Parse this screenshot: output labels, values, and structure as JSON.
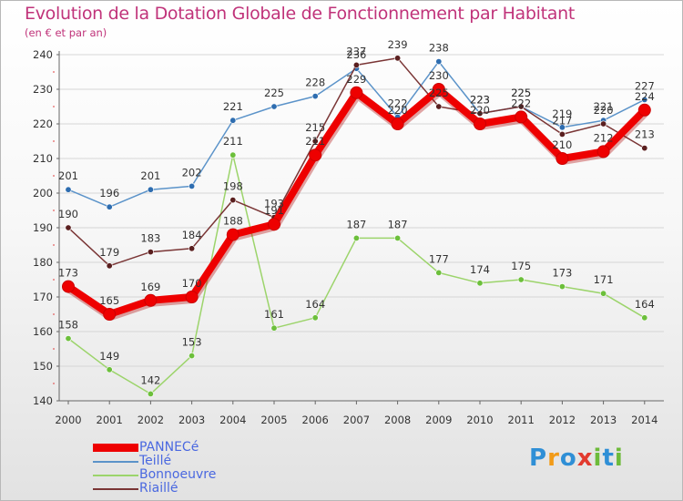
{
  "title": "Evolution de la Dotation Globale de Fonctionnement par Habitant",
  "subtitle": "(en € et par an)",
  "logo": {
    "letters": [
      "P",
      "r",
      "o",
      "x",
      "i",
      "t",
      "i"
    ],
    "colors": [
      "#2f8fd6",
      "#f29b18",
      "#2f8fd6",
      "#e23a2e",
      "#6dbb3a",
      "#2f8fd6",
      "#6dbb3a"
    ]
  },
  "chart_data": {
    "type": "line",
    "title": "Evolution de la Dotation Globale de Fonctionnement par Habitant",
    "subtitle": "(en € et par an)",
    "xlabel": "",
    "ylabel": "",
    "ylim": [
      140,
      240
    ],
    "yticks": [
      140,
      150,
      160,
      170,
      180,
      190,
      200,
      210,
      220,
      230,
      240
    ],
    "categories": [
      "2000",
      "2001",
      "2002",
      "2003",
      "2004",
      "2005",
      "2006",
      "2007",
      "2008",
      "2009",
      "2010",
      "2011",
      "2012",
      "2013",
      "2014"
    ],
    "legend_position": "bottom-left",
    "series": [
      {
        "name": "Teillé",
        "color": "#5b93c9",
        "point_color": "#2e6db0",
        "values": [
          201,
          196,
          201,
          202,
          221,
          225,
          228,
          236,
          222,
          238,
          223,
          225,
          219,
          221,
          227
        ],
        "labels": [
          "201",
          "196",
          "201",
          "202",
          "221",
          "225",
          "228",
          "236",
          "222",
          "238",
          "223",
          "225",
          "219",
          "221",
          "227"
        ]
      },
      {
        "name": "Bonnoeuvre",
        "color": "#9cd46b",
        "point_color": "#6cbf3b",
        "values": [
          158,
          149,
          142,
          153,
          211,
          161,
          164,
          187,
          187,
          177,
          174,
          175,
          173,
          171,
          164
        ],
        "labels": [
          "158",
          "149",
          "142",
          "153",
          "211",
          "161",
          "164",
          "187",
          "187",
          "177",
          "174",
          "175",
          "173",
          "171",
          "164"
        ]
      },
      {
        "name": "Riaillé",
        "color": "#7a3535",
        "point_color": "#5a1f1f",
        "values": [
          190,
          179,
          183,
          184,
          198,
          193,
          215,
          237,
          239,
          225,
          223,
          225,
          217,
          220,
          213
        ],
        "labels": [
          "190",
          "179",
          "183",
          "184",
          "198",
          "193",
          "215",
          "237",
          "239",
          "225",
          "223",
          "225",
          "217",
          "220",
          "213"
        ]
      },
      {
        "name": "PANNECé",
        "color": "#ee0000",
        "point_color": "#ee0000",
        "values": [
          173,
          165,
          169,
          170,
          188,
          191,
          211,
          229,
          220,
          230,
          220,
          222,
          210,
          212,
          224
        ],
        "labels": [
          "173",
          "165",
          "169",
          "170",
          "188",
          "191",
          "211",
          "229",
          "220",
          "230",
          "220",
          "222",
          "210",
          "212",
          "224"
        ]
      }
    ],
    "legend_order": [
      "PANNECé",
      "Teillé",
      "Bonnoeuvre",
      "Riaillé"
    ]
  }
}
